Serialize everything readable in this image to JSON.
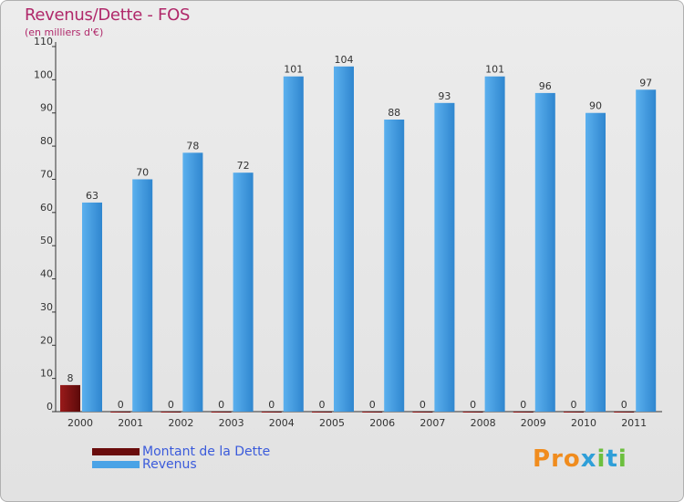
{
  "title": "Revenus/Dette - FOS",
  "subtitle": "(en milliers d'€)",
  "logo": {
    "text": "Proxiti",
    "colors": [
      "#f08c1e",
      "#2f9fd8",
      "#6cbf3e"
    ]
  },
  "legend": [
    {
      "label": "Montant de la Dette",
      "color": "#7a0e0e"
    },
    {
      "label": "Revenus",
      "color": "#4aa3e6"
    }
  ],
  "chart_data": {
    "type": "bar",
    "title": "Revenus/Dette - FOS",
    "ylabel": "(en milliers d'€)",
    "xlabel": "",
    "categories": [
      "2000",
      "2001",
      "2002",
      "2003",
      "2004",
      "2005",
      "2006",
      "2007",
      "2008",
      "2009",
      "2010",
      "2011"
    ],
    "series": [
      {
        "name": "Montant de la Dette",
        "color": "#7a0e0e",
        "values": [
          8,
          0,
          0,
          0,
          0,
          0,
          0,
          0,
          0,
          0,
          0,
          0
        ]
      },
      {
        "name": "Revenus",
        "color": "#4aa3e6",
        "values": [
          63,
          70,
          78,
          72,
          101,
          104,
          88,
          93,
          101,
          96,
          90,
          97
        ]
      }
    ],
    "ylim": [
      0,
      110
    ],
    "yticks": [
      0,
      10,
      20,
      30,
      40,
      50,
      60,
      70,
      80,
      90,
      100,
      110
    ],
    "grid": false,
    "legend_position": "bottom-left"
  }
}
